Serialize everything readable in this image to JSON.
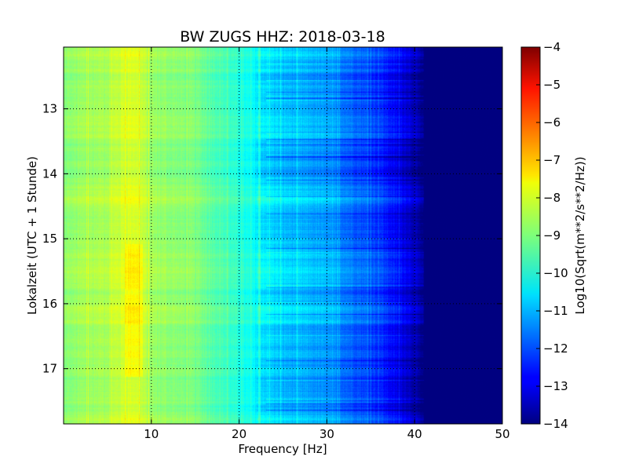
{
  "chart_data": {
    "type": "heatmap",
    "title": "BW ZUGS HHZ: 2018-03-18",
    "xlabel": "Frequency [Hz]",
    "ylabel": "Lokalzeit (UTC + 1 Stunde)",
    "colorbar_label": "Log10(Sqrt(m**2/s**2/Hz))",
    "xlim": [
      0,
      50
    ],
    "ylim": [
      17.85,
      12.05
    ],
    "x_ticks": [
      10,
      20,
      30,
      40,
      50
    ],
    "x_tick_labels": [
      "10",
      "20",
      "30",
      "40",
      "50"
    ],
    "y_ticks": [
      13,
      14,
      15,
      16,
      17
    ],
    "y_tick_labels": [
      "13",
      "14",
      "15",
      "16",
      "17"
    ],
    "colorbar_range": [
      -14,
      -4
    ],
    "colorbar_ticks": [
      -4,
      -5,
      -6,
      -7,
      -8,
      -9,
      -10,
      -11,
      -12,
      -13,
      -14
    ],
    "colorbar_tick_labels": [
      "−4",
      "−5",
      "−6",
      "−7",
      "−8",
      "−9",
      "−10",
      "−11",
      "−12",
      "−13",
      "−14"
    ],
    "colormap": "jet",
    "grid": true,
    "grid_style": "dotted",
    "psd_profile": {
      "frequency_hz": [
        0,
        2,
        5,
        7,
        8,
        9,
        10,
        12,
        15,
        18,
        20,
        22,
        25,
        28,
        30,
        33,
        36,
        38,
        39,
        40,
        41,
        50
      ],
      "log10_value": [
        -8.9,
        -8.7,
        -8.5,
        -8.1,
        -8.0,
        -8.3,
        -8.7,
        -8.8,
        -9.0,
        -9.5,
        -9.9,
        -10.3,
        -10.8,
        -11.0,
        -11.2,
        -11.7,
        -12.2,
        -12.8,
        -13.0,
        -13.4,
        -14.0,
        -14.0
      ]
    }
  }
}
